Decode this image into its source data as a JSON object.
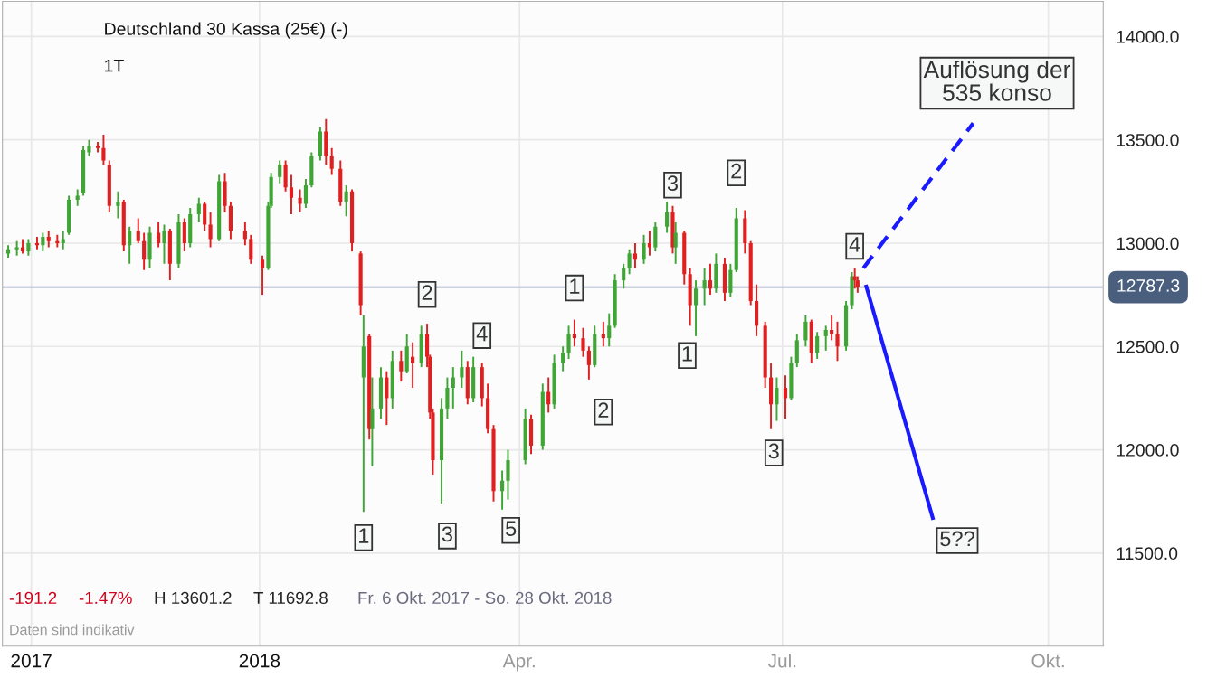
{
  "chart_data": {
    "type": "candlestick",
    "title": "Deutschland 30 Kassa (25€) (-)",
    "subtitle": "1T",
    "x": [
      "2017-10-06",
      "2017-10-09",
      "2017-10-11",
      "2017-10-13",
      "2017-10-16",
      "2017-10-18",
      "2017-10-20",
      "2017-10-23",
      "2017-10-25",
      "2017-10-27",
      "2017-10-30",
      "2017-11-01",
      "2017-11-03",
      "2017-11-06",
      "2017-11-08",
      "2017-11-10",
      "2017-11-13",
      "2017-11-15",
      "2017-11-17",
      "2017-11-20",
      "2017-11-22",
      "2017-11-24",
      "2017-11-27",
      "2017-11-29",
      "2017-12-01",
      "2017-12-04",
      "2017-12-06",
      "2017-12-08",
      "2017-12-11",
      "2017-12-13",
      "2017-12-15",
      "2017-12-18",
      "2017-12-20",
      "2017-12-22",
      "2017-12-27",
      "2017-12-29",
      "2018-01-02",
      "2018-01-04",
      "2018-01-05",
      "2018-01-08",
      "2018-01-10",
      "2018-01-12",
      "2018-01-15",
      "2018-01-17",
      "2018-01-19",
      "2018-01-22",
      "2018-01-24",
      "2018-01-26",
      "2018-01-29",
      "2018-01-31",
      "2018-02-02",
      "2018-02-05",
      "2018-02-06",
      "2018-02-08",
      "2018-02-09",
      "2018-02-12",
      "2018-02-14",
      "2018-02-16",
      "2018-02-19",
      "2018-02-21",
      "2018-02-23",
      "2018-02-26",
      "2018-02-28",
      "2018-03-01",
      "2018-03-02",
      "2018-03-05",
      "2018-03-07",
      "2018-03-09",
      "2018-03-12",
      "2018-03-14",
      "2018-03-16",
      "2018-03-19",
      "2018-03-21",
      "2018-03-23",
      "2018-03-26",
      "2018-03-28",
      "2018-04-03",
      "2018-04-05",
      "2018-04-09",
      "2018-04-11",
      "2018-04-13",
      "2018-04-16",
      "2018-04-18",
      "2018-04-20",
      "2018-04-23",
      "2018-04-25",
      "2018-04-27",
      "2018-04-30",
      "2018-05-02",
      "2018-05-04",
      "2018-05-07",
      "2018-05-09",
      "2018-05-11",
      "2018-05-14",
      "2018-05-16",
      "2018-05-18",
      "2018-05-22",
      "2018-05-24",
      "2018-05-25",
      "2018-05-28",
      "2018-05-30",
      "2018-06-01",
      "2018-06-04",
      "2018-06-06",
      "2018-06-08",
      "2018-06-11",
      "2018-06-13",
      "2018-06-15",
      "2018-06-18",
      "2018-06-20",
      "2018-06-22",
      "2018-06-25",
      "2018-06-27",
      "2018-06-29",
      "2018-07-02",
      "2018-07-04",
      "2018-07-06",
      "2018-07-09",
      "2018-07-11",
      "2018-07-13",
      "2018-07-16",
      "2018-07-18",
      "2018-07-20",
      "2018-07-23",
      "2018-07-25",
      "2018-07-26",
      "2018-07-27"
    ],
    "ohlc": [
      [
        12950,
        12990,
        12930,
        12970
      ],
      [
        12970,
        13010,
        12940,
        12980
      ],
      [
        12980,
        13020,
        12950,
        12960
      ],
      [
        12960,
        13020,
        12940,
        13000
      ],
      [
        13000,
        13030,
        12970,
        12990
      ],
      [
        12990,
        13050,
        12960,
        13030
      ],
      [
        13030,
        13060,
        12980,
        13010
      ],
      [
        13010,
        13040,
        12980,
        13000
      ],
      [
        13000,
        13060,
        12970,
        13020
      ],
      [
        13050,
        13230,
        13040,
        13210
      ],
      [
        13210,
        13260,
        13180,
        13230
      ],
      [
        13240,
        13470,
        13230,
        13450
      ],
      [
        13440,
        13500,
        13420,
        13470
      ],
      [
        13470,
        13490,
        13440,
        13460
      ],
      [
        13460,
        13525,
        13380,
        13400
      ],
      [
        13380,
        13400,
        13150,
        13180
      ],
      [
        13180,
        13250,
        13120,
        13200
      ],
      [
        13200,
        13210,
        12960,
        12990
      ],
      [
        12990,
        13080,
        12900,
        13060
      ],
      [
        13060,
        13120,
        13000,
        13010
      ],
      [
        13010,
        13050,
        12870,
        12920
      ],
      [
        12920,
        13080,
        12880,
        13050
      ],
      [
        13050,
        13100,
        12980,
        13000
      ],
      [
        13000,
        13090,
        12900,
        13060
      ],
      [
        13060,
        13070,
        12820,
        12900
      ],
      [
        12900,
        13140,
        12880,
        13100
      ],
      [
        13100,
        13120,
        12960,
        13000
      ],
      [
        13000,
        13170,
        12980,
        13140
      ],
      [
        13140,
        13220,
        13100,
        13190
      ],
      [
        13190,
        13200,
        13060,
        13090
      ],
      [
        13090,
        13150,
        12980,
        13020
      ],
      [
        13020,
        13330,
        13010,
        13300
      ],
      [
        13300,
        13340,
        13150,
        13180
      ],
      [
        13180,
        13200,
        13020,
        13060
      ],
      [
        13060,
        13100,
        12990,
        13020
      ],
      [
        13020,
        13040,
        12900,
        12920
      ],
      [
        12920,
        12940,
        12750,
        12880
      ],
      [
        12880,
        13200,
        12870,
        13180
      ],
      [
        13180,
        13340,
        13170,
        13320
      ],
      [
        13320,
        13400,
        13290,
        13380
      ],
      [
        13380,
        13400,
        13250,
        13270
      ],
      [
        13270,
        13330,
        13140,
        13220
      ],
      [
        13220,
        13260,
        13150,
        13190
      ],
      [
        13190,
        13310,
        13170,
        13280
      ],
      [
        13280,
        13440,
        13270,
        13420
      ],
      [
        13420,
        13560,
        13400,
        13540
      ],
      [
        13540,
        13600,
        13380,
        13420
      ],
      [
        13420,
        13460,
        13330,
        13360
      ],
      [
        13360,
        13400,
        13180,
        13200
      ],
      [
        13200,
        13280,
        13130,
        13250
      ],
      [
        13250,
        13260,
        12960,
        13000
      ],
      [
        12950,
        12960,
        12650,
        12700
      ],
      [
        12350,
        12650,
        11700,
        12500
      ],
      [
        12550,
        12560,
        12050,
        12100
      ],
      [
        12100,
        12350,
        11920,
        12200
      ],
      [
        12200,
        12400,
        12150,
        12350
      ],
      [
        12350,
        12380,
        12120,
        12250
      ],
      [
        12250,
        12480,
        12200,
        12430
      ],
      [
        12430,
        12480,
        12330,
        12380
      ],
      [
        12380,
        12560,
        12370,
        12500
      ],
      [
        12450,
        12520,
        12300,
        12420
      ],
      [
        12420,
        12600,
        12400,
        12560
      ],
      [
        12560,
        12610,
        12400,
        12450
      ],
      [
        12450,
        12460,
        12150,
        12180
      ],
      [
        12180,
        12200,
        11880,
        11950
      ],
      [
        11950,
        12250,
        11740,
        12200
      ],
      [
        12200,
        12350,
        12150,
        12300
      ],
      [
        12300,
        12400,
        12200,
        12350
      ],
      [
        12350,
        12480,
        12300,
        12400
      ],
      [
        12400,
        12430,
        12220,
        12250
      ],
      [
        12250,
        12450,
        12230,
        12400
      ],
      [
        12400,
        12420,
        12210,
        12250
      ],
      [
        12250,
        12320,
        12080,
        12100
      ],
      [
        12100,
        12120,
        11750,
        11800
      ],
      [
        11800,
        11900,
        11710,
        11850
      ],
      [
        11850,
        12000,
        11760,
        11950
      ],
      [
        11950,
        12200,
        11930,
        12150
      ],
      [
        12150,
        12170,
        11980,
        12020
      ],
      [
        12020,
        12320,
        12000,
        12280
      ],
      [
        12280,
        12350,
        12180,
        12220
      ],
      [
        12220,
        12460,
        12200,
        12420
      ],
      [
        12420,
        12500,
        12380,
        12470
      ],
      [
        12470,
        12600,
        12440,
        12560
      ],
      [
        12560,
        12630,
        12500,
        12540
      ],
      [
        12540,
        12590,
        12450,
        12480
      ],
      [
        12480,
        12500,
        12340,
        12410
      ],
      [
        12410,
        12600,
        12400,
        12560
      ],
      [
        12560,
        12620,
        12500,
        12540
      ],
      [
        12540,
        12660,
        12500,
        12600
      ],
      [
        12600,
        12850,
        12590,
        12820
      ],
      [
        12820,
        12900,
        12780,
        12880
      ],
      [
        12880,
        12970,
        12850,
        12950
      ],
      [
        12950,
        13000,
        12880,
        12920
      ],
      [
        12920,
        13040,
        12900,
        13000
      ],
      [
        13000,
        13060,
        12940,
        12980
      ],
      [
        12980,
        13100,
        12960,
        13080
      ],
      [
        13080,
        13200,
        13050,
        13150
      ],
      [
        13150,
        13180,
        12950,
        12980
      ],
      [
        12980,
        13100,
        12900,
        13050
      ],
      [
        13050,
        13060,
        12800,
        12850
      ],
      [
        12850,
        12880,
        12600,
        12700
      ],
      [
        12700,
        12820,
        12550,
        12780
      ],
      [
        12780,
        12880,
        12700,
        12820
      ],
      [
        12820,
        12900,
        12750,
        12780
      ],
      [
        12780,
        12950,
        12760,
        12900
      ],
      [
        12900,
        12930,
        12720,
        12760
      ],
      [
        12760,
        12900,
        12740,
        12870
      ],
      [
        12870,
        13170,
        12860,
        13120
      ],
      [
        13120,
        13160,
        12950,
        13000
      ],
      [
        13000,
        13010,
        12700,
        12720
      ],
      [
        12720,
        12800,
        12550,
        12600
      ],
      [
        12600,
        12620,
        12300,
        12350
      ],
      [
        12350,
        12420,
        12100,
        12220
      ],
      [
        12220,
        12350,
        12140,
        12300
      ],
      [
        12300,
        12360,
        12150,
        12250
      ],
      [
        12250,
        12450,
        12240,
        12420
      ],
      [
        12420,
        12560,
        12400,
        12530
      ],
      [
        12530,
        12650,
        12500,
        12620
      ],
      [
        12620,
        12630,
        12420,
        12470
      ],
      [
        12470,
        12570,
        12440,
        12550
      ],
      [
        12550,
        12600,
        12480,
        12580
      ],
      [
        12580,
        12650,
        12530,
        12560
      ],
      [
        12560,
        12620,
        12430,
        12500
      ],
      [
        12500,
        12720,
        12480,
        12700
      ],
      [
        12700,
        12860,
        12680,
        12840
      ],
      [
        12840,
        12880,
        12780,
        12820
      ],
      [
        12820,
        12840,
        12760,
        12787.3
      ]
    ],
    "colors": [
      "#3fa535",
      "#3fa535",
      "#e02020",
      "#3fa535",
      "#e02020",
      "#3fa535",
      "#e02020",
      "#e02020",
      "#3fa535",
      "#3fa535",
      "#3fa535",
      "#3fa535",
      "#3fa535",
      "#e02020",
      "#e02020",
      "#e02020",
      "#3fa535",
      "#e02020",
      "#3fa535",
      "#e02020",
      "#e02020",
      "#3fa535",
      "#e02020",
      "#3fa535",
      "#e02020",
      "#3fa535",
      "#e02020",
      "#3fa535",
      "#3fa535",
      "#e02020",
      "#e02020",
      "#3fa535",
      "#e02020",
      "#e02020",
      "#e02020",
      "#e02020",
      "#e02020",
      "#3fa535",
      "#3fa535",
      "#3fa535",
      "#e02020",
      "#e02020",
      "#e02020",
      "#3fa535",
      "#3fa535",
      "#3fa535",
      "#e02020",
      "#e02020",
      "#e02020",
      "#3fa535",
      "#e02020",
      "#e02020",
      "#3fa535",
      "#e02020",
      "#3fa535",
      "#3fa535",
      "#e02020",
      "#3fa535",
      "#e02020",
      "#3fa535",
      "#e02020",
      "#3fa535",
      "#e02020",
      "#e02020",
      "#e02020",
      "#3fa535",
      "#3fa535",
      "#3fa535",
      "#3fa535",
      "#e02020",
      "#3fa535",
      "#e02020",
      "#e02020",
      "#e02020",
      "#3fa535",
      "#3fa535",
      "#3fa535",
      "#e02020",
      "#3fa535",
      "#e02020",
      "#3fa535",
      "#3fa535",
      "#3fa535",
      "#e02020",
      "#e02020",
      "#e02020",
      "#3fa535",
      "#e02020",
      "#3fa535",
      "#3fa535",
      "#3fa535",
      "#3fa535",
      "#e02020",
      "#3fa535",
      "#e02020",
      "#3fa535",
      "#3fa535",
      "#e02020",
      "#3fa535",
      "#e02020",
      "#e02020",
      "#3fa535",
      "#3fa535",
      "#e02020",
      "#3fa535",
      "#e02020",
      "#3fa535",
      "#3fa535",
      "#e02020",
      "#e02020",
      "#e02020",
      "#e02020",
      "#e02020",
      "#3fa535",
      "#e02020",
      "#3fa535",
      "#3fa535",
      "#3fa535",
      "#e02020",
      "#3fa535",
      "#3fa535",
      "#e02020",
      "#e02020",
      "#3fa535",
      "#3fa535",
      "#e02020",
      "#e02020"
    ],
    "series": [
      {
        "type": "line",
        "color": "#1a1aff",
        "line_style": "dashed",
        "x": [
          "2018-07-29",
          "2018-09-05"
        ],
        "values": [
          12880,
          13580
        ]
      },
      {
        "type": "line",
        "color": "#1a1aff",
        "line_style": "solid",
        "x": [
          "2018-07-30",
          "2018-08-22"
        ],
        "values": [
          12790,
          11670
        ]
      }
    ],
    "xlim": [
      "2017-10-04",
      "2018-10-20"
    ],
    "xticks": [
      {
        "value": "2017-10-14",
        "label": "2017"
      },
      {
        "value": "2018-01-01",
        "label": "2018"
      },
      {
        "value": "2018-04-01",
        "label": "Apr."
      },
      {
        "value": "2018-07-01",
        "label": "Jul."
      },
      {
        "value": "2018-10-01",
        "label": "Okt."
      }
    ],
    "ylim": [
      11050,
      14170
    ],
    "yticks": [
      {
        "value": 11500,
        "label": "11500.0"
      },
      {
        "value": 12000,
        "label": "12000.0"
      },
      {
        "value": 12500,
        "label": "12500.0"
      },
      {
        "value": 13000,
        "label": "13000.0"
      },
      {
        "value": 13500,
        "label": "13500.0"
      },
      {
        "value": 14000,
        "label": "14000.0"
      }
    ],
    "grid": true,
    "ref_lines": [
      {
        "axis": "y",
        "value": 12787.3,
        "label": "12787.3",
        "color": "#9aa4b8"
      }
    ],
    "annotations": [
      "-191.2",
      "-1.47%",
      "H 13601.2",
      "T 11692.8",
      "Fr. 6 Okt. 2017 - So. 28 Okt. 2018",
      "Daten sind indikativ",
      "5??",
      "Auflösung der\n535 konso",
      {
        "text": "1",
        "x": "2018-02-06",
        "y": 11575
      },
      {
        "text": "2",
        "x": "2018-02-28",
        "y": 12752
      },
      {
        "text": "3",
        "x": "2018-03-07",
        "y": 11583
      },
      {
        "text": "4",
        "x": "2018-03-19",
        "y": 12553
      },
      {
        "text": "5",
        "x": "2018-03-29",
        "y": 11610
      },
      {
        "text": "1",
        "x": "2018-04-20",
        "y": 12783
      },
      {
        "text": "2",
        "x": "2018-04-30",
        "y": 12183
      },
      {
        "text": "3",
        "x": "2018-05-24",
        "y": 13281
      },
      {
        "text": "1",
        "x": "2018-05-29",
        "y": 12456
      },
      {
        "text": "2",
        "x": "2018-06-15",
        "y": 13340
      },
      {
        "text": "3",
        "x": "2018-06-28",
        "y": 11985
      },
      {
        "text": "4",
        "x": "2018-07-26",
        "y": 12985
      }
    ]
  }
}
